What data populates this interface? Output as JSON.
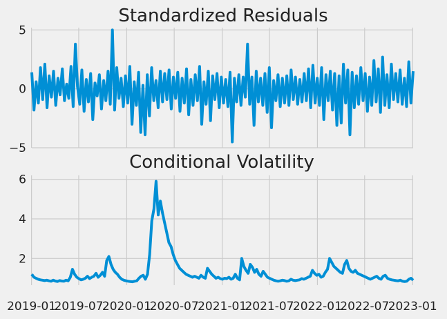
{
  "chart_data": [
    {
      "type": "line",
      "title": "Standardized Residuals",
      "xlabel": "",
      "ylabel": "",
      "ylim": [
        -5,
        5.2
      ],
      "yticks": [
        "5",
        "0",
        "−5"
      ],
      "ytick_values": [
        5,
        0,
        -5
      ],
      "grid": true,
      "x_start": "2019-01-02",
      "x_end": "2023-01-03",
      "series": [
        {
          "values": [
            1.4,
            -1.8,
            0.6,
            -1.2,
            1.8,
            -0.9,
            2.1,
            -1.6,
            1.1,
            -0.7,
            1.5,
            -1.4,
            0.9,
            -0.5,
            1.7,
            -1.0,
            0.4,
            -0.8,
            1.9,
            -1.5,
            3.8,
            0.2,
            -1.3,
            1.6,
            -1.9,
            0.8,
            -1.1,
            1.3,
            -2.6,
            0.5,
            -0.6,
            1.2,
            -1.7,
            0.7,
            -1.0,
            1.5,
            -1.3,
            5.0,
            -1.8,
            1.8,
            -0.8,
            0.9,
            -1.5,
            1.1,
            -1.2,
            1.9,
            -3.0,
            0.6,
            -1.4,
            1.4,
            -3.7,
            0.3,
            -3.9,
            1.2,
            -2.3,
            1.8,
            -1.0,
            0.7,
            -1.6,
            1.5,
            -1.1,
            1.3,
            -0.9,
            1.6,
            -1.7,
            1.0,
            -0.8,
            1.4,
            -1.9,
            0.9,
            -1.2,
            1.7,
            -2.2,
            0.8,
            -1.4,
            1.2,
            -1.0,
            1.9,
            -3.0,
            0.6,
            -1.3,
            1.5,
            -2.7,
            1.1,
            -0.9,
            1.3,
            -1.6,
            1.0,
            -1.2,
            0.8,
            -1.5,
            1.4,
            -4.5,
            0.9,
            -1.1,
            1.2,
            -1.4,
            1.0,
            -0.7,
            3.8,
            -1.3,
            1.0,
            -3.1,
            1.5,
            -1.1,
            0.9,
            -1.4,
            1.3,
            -2.0,
            1.8,
            -3.3,
            0.7,
            -1.0,
            1.2,
            -1.5,
            0.9,
            -1.2,
            1.1,
            -1.4,
            1.6,
            -0.9,
            1.0,
            -1.3,
            0.8,
            -1.1,
            1.3,
            -1.0,
            1.7,
            -1.6,
            2.0,
            -1.2,
            0.9,
            -1.4,
            1.8,
            -2.6,
            1.2,
            -1.0,
            1.5,
            -1.8,
            1.3,
            -3.1,
            1.1,
            -2.9,
            2.1,
            -1.2,
            1.6,
            -3.9,
            1.4,
            -1.6,
            1.1,
            -1.3,
            1.8,
            -1.0,
            1.3,
            -1.9,
            1.0,
            -1.4,
            2.4,
            -1.1,
            1.7,
            -2.0,
            2.7,
            -1.4,
            1.2,
            -1.6,
            2.1,
            -0.9,
            1.3,
            -1.1,
            1.6,
            -1.3,
            0.9,
            -1.5,
            2.3,
            -1.2,
            1.5
          ]
        }
      ]
    },
    {
      "type": "line",
      "title": "Conditional Volatility",
      "xlabel": "",
      "ylabel": "",
      "ylim": [
        0.65,
        6.2
      ],
      "yticks": [
        "6",
        "4",
        "2"
      ],
      "ytick_values": [
        6,
        4,
        2
      ],
      "grid": true,
      "x_start": "2019-01-02",
      "x_end": "2023-01-03",
      "x_tick_labels": [
        "2019-01",
        "2019-07",
        "2020-01",
        "2020-07",
        "2021-01",
        "2021-07",
        "2022-01",
        "2022-07",
        "2023-01"
      ],
      "x_tick_dates": [
        "2019-01-01",
        "2019-07-01",
        "2020-01-01",
        "2020-07-01",
        "2021-01-01",
        "2021-07-01",
        "2022-01-01",
        "2022-07-01",
        "2023-01-01"
      ],
      "series": [
        {
          "values": [
            1.2,
            1.05,
            1.0,
            0.95,
            0.92,
            0.9,
            0.88,
            0.9,
            0.87,
            0.85,
            0.9,
            0.86,
            0.84,
            0.88,
            0.86,
            0.85,
            0.9,
            0.87,
            1.05,
            1.45,
            1.2,
            1.05,
            0.98,
            0.92,
            0.95,
            1.0,
            1.1,
            0.98,
            1.05,
            1.1,
            1.25,
            1.05,
            1.15,
            1.3,
            1.1,
            1.9,
            2.1,
            1.7,
            1.45,
            1.3,
            1.2,
            1.05,
            0.95,
            0.9,
            0.87,
            0.85,
            0.83,
            0.82,
            0.85,
            0.87,
            1.0,
            1.1,
            1.15,
            0.95,
            1.2,
            2.2,
            3.9,
            4.5,
            5.9,
            4.2,
            4.9,
            4.3,
            3.8,
            3.3,
            2.8,
            2.6,
            2.2,
            1.9,
            1.7,
            1.5,
            1.4,
            1.3,
            1.2,
            1.15,
            1.1,
            1.05,
            1.1,
            1.05,
            1.0,
            1.15,
            1.05,
            1.0,
            1.5,
            1.35,
            1.2,
            1.1,
            1.0,
            1.05,
            0.98,
            0.95,
            1.0,
            0.98,
            1.05,
            0.95,
            1.0,
            1.2,
            1.0,
            0.92,
            2.0,
            1.6,
            1.4,
            1.25,
            1.7,
            1.55,
            1.3,
            1.45,
            1.2,
            1.1,
            1.35,
            1.2,
            1.05,
            1.0,
            0.95,
            0.9,
            0.87,
            0.85,
            0.87,
            0.9,
            0.88,
            0.85,
            0.87,
            0.95,
            0.9,
            0.88,
            0.9,
            0.92,
            0.98,
            0.95,
            1.0,
            1.05,
            1.1,
            1.4,
            1.25,
            1.15,
            1.2,
            1.05,
            1.1,
            1.3,
            1.45,
            2.0,
            1.8,
            1.6,
            1.5,
            1.4,
            1.3,
            1.25,
            1.7,
            1.9,
            1.5,
            1.35,
            1.3,
            1.4,
            1.25,
            1.2,
            1.15,
            1.1,
            1.05,
            1.0,
            0.95,
            1.0,
            1.05,
            1.1,
            1.0,
            0.95,
            1.1,
            1.15,
            1.0,
            0.95,
            0.92,
            0.9,
            0.88,
            0.87,
            0.9,
            0.85,
            0.83,
            0.85,
            0.95,
            1.0,
            0.9
          ]
        }
      ]
    }
  ]
}
